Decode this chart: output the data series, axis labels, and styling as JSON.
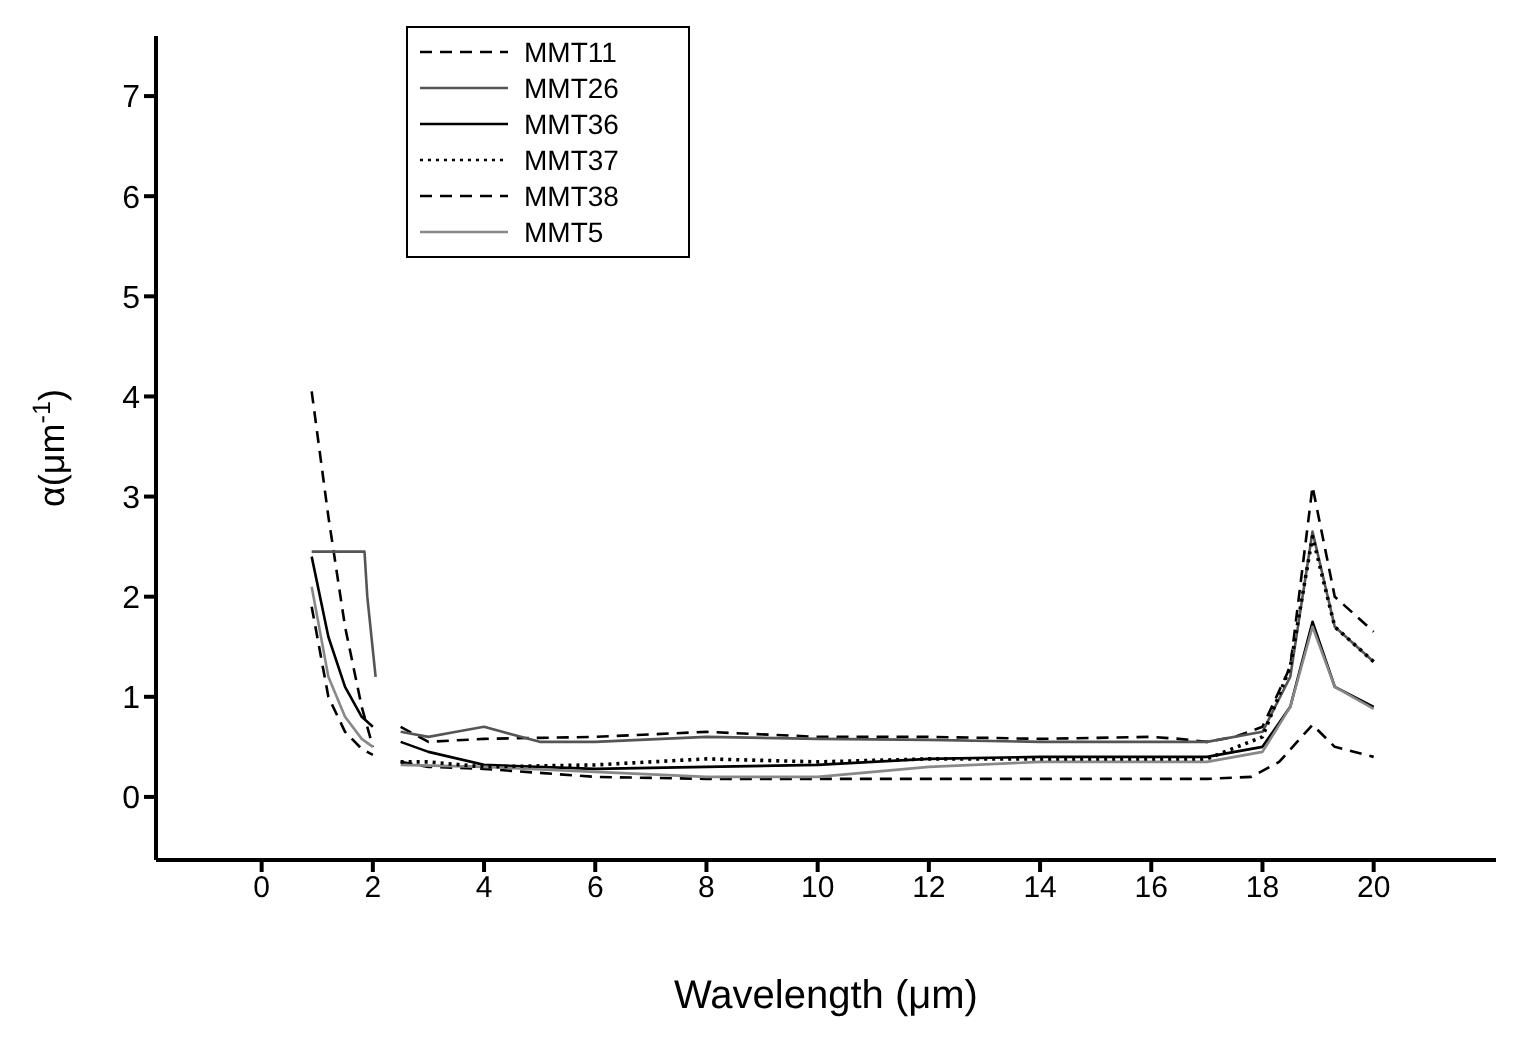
{
  "chart_data": {
    "type": "line",
    "xlabel": "Wavelength (μm)",
    "ylabel": "α(μm$^{-1}$)",
    "xlim": [
      -1.9,
      22.2
    ],
    "xticks": [
      0,
      2,
      4,
      6,
      8,
      10,
      12,
      14,
      16,
      18,
      20
    ],
    "ylim": [
      -0.63,
      7.6
    ],
    "yticks": [
      0,
      1,
      2,
      3,
      4,
      5,
      6,
      7
    ],
    "legend": "top left",
    "grid": false,
    "marker": "none",
    "series": [
      {
        "name": "MMT11",
        "color": "#000000",
        "line_style": "dashed",
        "x": [
          0.9,
          1.2,
          1.5,
          1.8,
          2.0,
          2.25,
          2.5,
          3,
          4,
          6,
          8,
          10,
          12,
          14,
          16,
          16.5,
          17,
          17.5,
          18,
          18.5,
          18.9,
          19.3,
          20
        ],
        "values": [
          4.05,
          2.8,
          1.7,
          0.9,
          0.5,
          null,
          0.7,
          0.55,
          0.58,
          0.6,
          0.65,
          0.6,
          0.6,
          0.58,
          0.6,
          0.58,
          0.55,
          0.6,
          0.7,
          1.3,
          3.1,
          2.0,
          1.65
        ]
      },
      {
        "name": "MMT26",
        "color": "#555555",
        "x": [
          0.9,
          1.85,
          1.9,
          2.05,
          2.25,
          2.5,
          3,
          3.5,
          4,
          5,
          6,
          8,
          10,
          12,
          14,
          16,
          17,
          18,
          18.5,
          18.9,
          19.3,
          20
        ],
        "values": [
          2.45,
          2.45,
          2.0,
          1.2,
          null,
          0.65,
          0.6,
          0.65,
          0.7,
          0.55,
          0.55,
          0.6,
          0.58,
          0.57,
          0.55,
          0.55,
          0.55,
          0.65,
          1.2,
          2.65,
          1.7,
          1.35
        ]
      },
      {
        "name": "MMT36",
        "color": "#000000",
        "x": [
          0.9,
          1.2,
          1.5,
          1.8,
          2.0,
          2.25,
          2.5,
          3,
          4,
          6,
          8,
          10,
          12,
          14,
          16,
          17,
          18,
          18.5,
          18.9,
          19.3,
          20
        ],
        "values": [
          2.4,
          1.6,
          1.1,
          0.8,
          0.7,
          null,
          0.55,
          0.45,
          0.32,
          0.28,
          0.3,
          0.32,
          0.38,
          0.4,
          0.4,
          0.4,
          0.5,
          0.9,
          1.75,
          1.1,
          0.9
        ]
      },
      {
        "name": "MMT37",
        "color": "#000000",
        "line_style": "dotted",
        "x": [
          2.5,
          3,
          4,
          6,
          8,
          10,
          12,
          14,
          16,
          17,
          18,
          18.5,
          18.9,
          19.3,
          20
        ],
        "values": [
          0.35,
          0.35,
          0.3,
          0.32,
          0.38,
          0.35,
          0.38,
          0.38,
          0.38,
          0.38,
          0.6,
          1.3,
          2.6,
          1.7,
          1.35
        ]
      },
      {
        "name": "MMT38",
        "color": "#000000",
        "line_style": "dashed",
        "x": [
          0.9,
          1.2,
          1.5,
          1.8,
          2.0,
          2.25,
          2.5,
          3,
          4,
          6,
          8,
          10,
          12,
          14,
          16,
          17,
          17.8,
          18.3,
          18.9,
          19.3,
          20
        ],
        "values": [
          1.9,
          1.0,
          0.65,
          0.48,
          0.42,
          null,
          0.35,
          0.3,
          0.28,
          0.2,
          0.18,
          0.18,
          0.18,
          0.18,
          0.18,
          0.18,
          0.2,
          0.35,
          0.72,
          0.5,
          0.4
        ]
      },
      {
        "name": "MMT5",
        "color": "#888888",
        "x": [
          0.9,
          1.2,
          1.5,
          1.8,
          2.0,
          2.25,
          2.5,
          4,
          6,
          8,
          10,
          12,
          14,
          16,
          17,
          18,
          18.5,
          18.9,
          19.3,
          20
        ],
        "values": [
          2.1,
          1.2,
          0.8,
          0.58,
          0.5,
          null,
          0.32,
          0.3,
          0.25,
          0.2,
          0.2,
          0.3,
          0.35,
          0.35,
          0.35,
          0.45,
          0.9,
          1.7,
          1.1,
          0.88
        ]
      }
    ]
  }
}
